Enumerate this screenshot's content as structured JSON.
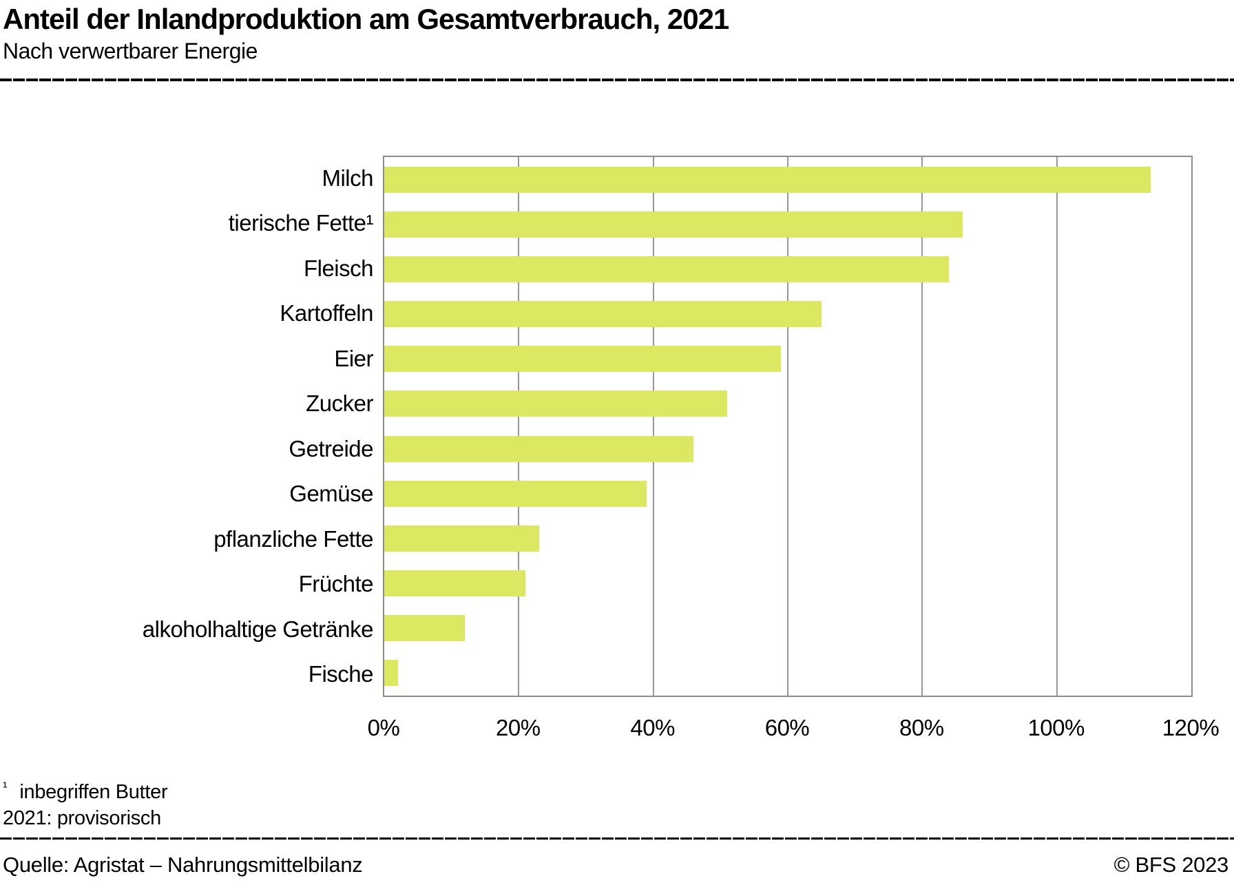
{
  "header": {
    "title": "Anteil der Inlandproduktion am Gesamtverbrauch, 2021",
    "subtitle": "Nach verwertbarer Energie"
  },
  "chart_data": {
    "type": "bar",
    "orientation": "horizontal",
    "title": "Anteil der Inlandproduktion am Gesamtverbrauch, 2021",
    "subtitle": "Nach verwertbarer Energie",
    "categories": [
      "Milch",
      "tierische Fette¹",
      "Fleisch",
      "Kartoffeln",
      "Eier",
      "Zucker",
      "Getreide",
      "Gemüse",
      "pflanzliche Fette",
      "Früchte",
      "alkoholhaltige Getränke",
      "Fische"
    ],
    "values": [
      114,
      86,
      84,
      65,
      59,
      51,
      46,
      39,
      23,
      21,
      12,
      2
    ],
    "unit": "%",
    "x_ticks": [
      "0%",
      "20%",
      "40%",
      "60%",
      "80%",
      "100%",
      "120%"
    ],
    "xlim": [
      0,
      120
    ],
    "grid": "vertical-only",
    "legend": "none",
    "bar_color": "#dce861",
    "grid_color": "#979797",
    "border_color": "#8c8c8c"
  },
  "notes": {
    "footnote_marker": "¹",
    "footnote_text": "inbegriffen Butter",
    "note2": "2021: provisorisch"
  },
  "footer": {
    "source": "Quelle: Agristat – Nahrungsmittelbilanz",
    "copyright": "© BFS 2023"
  }
}
